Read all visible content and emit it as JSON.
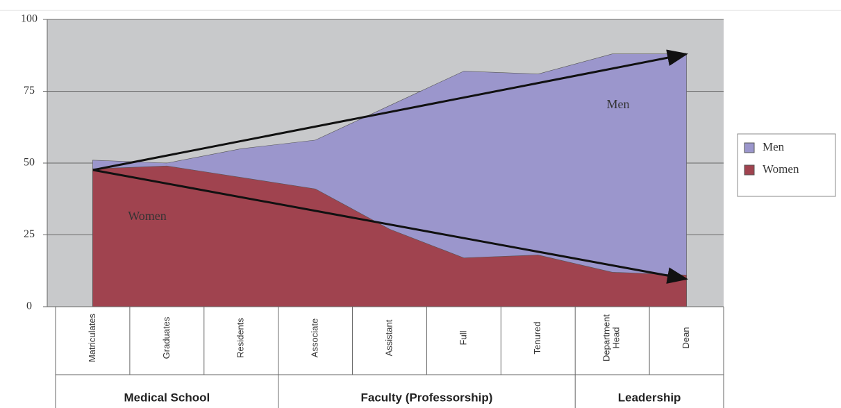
{
  "chart_data": {
    "type": "area",
    "categories": [
      "Matriculates",
      "Graduates",
      "Residents",
      "Associate",
      "Assistant",
      "Full",
      "Tenured",
      "Department Head",
      "Dean"
    ],
    "category_groups": [
      "Medical School",
      "Medical School",
      "Medical School",
      "Faculty (Professorship)",
      "Faculty (Professorship)",
      "Faculty (Professorship)",
      "Faculty (Professorship)",
      "Leadership",
      "Leadership"
    ],
    "series": [
      {
        "name": "Men",
        "color": "#9b96cc",
        "values": [
          51,
          50,
          55,
          58,
          70,
          82,
          81,
          88,
          88
        ]
      },
      {
        "name": "Women",
        "color": "#a0434f",
        "values": [
          48,
          49,
          45,
          41,
          27,
          17,
          18,
          12,
          11
        ]
      }
    ],
    "annotations": [
      "Men",
      "Women"
    ],
    "ylim": [
      0,
      100
    ],
    "yticks": [
      0,
      25,
      50,
      75,
      100
    ],
    "grid": true,
    "legend": "right"
  }
}
